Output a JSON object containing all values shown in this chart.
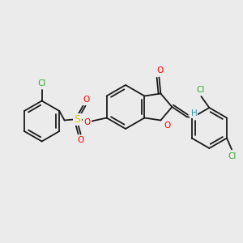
{
  "bg_color": "#ebebeb",
  "bond_color": "#1a1a1a",
  "bond_width": 1.3,
  "atom_colors": {
    "O": "#ff0000",
    "S": "#cccc00",
    "Cl": "#33aa33",
    "H": "#3399aa",
    "C": "#1a1a1a"
  },
  "font_size": 7.5
}
